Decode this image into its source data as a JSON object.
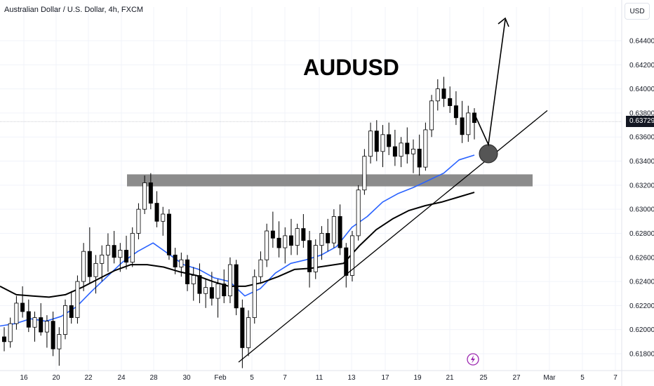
{
  "header": {
    "symbol": "Australian Dollar / U.S. Dollar, 4h, FXCM",
    "currency": "USD"
  },
  "annotations": {
    "title": "AUDUSD"
  },
  "price_axis": {
    "current_price": "0.63729"
  },
  "colors": {
    "bull_candle": "#ffffff",
    "bear_candle": "#000000",
    "ma_fast": "#2962ff",
    "ma_slow": "#000000",
    "resistance_zone": "#8c8c8c",
    "grid": "#f0f3fa",
    "zone_marker": "#555555"
  },
  "icons": {
    "event_marker": "lightning-icon"
  },
  "chart_data": {
    "type": "candlestick",
    "x_ticks": [
      "16",
      "20",
      "22",
      "24",
      "28",
      "30",
      "Feb",
      "5",
      "7",
      "11",
      "13",
      "17",
      "19",
      "21",
      "25",
      "27",
      "Mar",
      "5",
      "7"
    ],
    "y_ticks": [
      "0.64400",
      "0.64200",
      "0.64000",
      "0.63800",
      "0.63600",
      "0.63400",
      "0.63200",
      "0.63000",
      "0.62800",
      "0.62600",
      "0.62400",
      "0.62200",
      "0.62000",
      "0.61800"
    ],
    "ylim": [
      0.6166,
      0.6468
    ],
    "grid": true,
    "support_zone": [
      0.6319,
      0.6329
    ],
    "ma_fast_values": [
      0.6203,
      0.6205,
      0.6209,
      0.6207,
      0.6211,
      0.6219,
      0.6232,
      0.6244,
      0.6256,
      0.6265,
      0.6272,
      0.6263,
      0.6254,
      0.625,
      0.6243,
      0.624,
      0.6228,
      0.6234,
      0.6247,
      0.6255,
      0.6258,
      0.6262,
      0.6269,
      0.6285,
      0.6294,
      0.6306,
      0.6313,
      0.6318,
      0.6324,
      0.633,
      0.6341,
      0.6345
    ],
    "ma_slow_values": [
      0.6236,
      0.6229,
      0.6228,
      0.6227,
      0.6229,
      0.6235,
      0.6242,
      0.6249,
      0.6254,
      0.6254,
      0.6252,
      0.6248,
      0.6245,
      0.624,
      0.6236,
      0.6236,
      0.6239,
      0.6244,
      0.625,
      0.6251,
      0.6253,
      0.6255,
      0.627,
      0.6283,
      0.6292,
      0.6299,
      0.6303,
      0.6306,
      0.631,
      0.6314
    ],
    "trendline": [
      [
        0.6173
      ],
      [
        0.6382
      ]
    ],
    "candles": [
      {
        "o": 0.6194,
        "h": 0.6202,
        "l": 0.6182,
        "c": 0.619
      },
      {
        "o": 0.619,
        "h": 0.621,
        "l": 0.6185,
        "c": 0.6205
      },
      {
        "o": 0.6205,
        "h": 0.6228,
        "l": 0.62,
        "c": 0.6222
      },
      {
        "o": 0.6222,
        "h": 0.6236,
        "l": 0.621,
        "c": 0.6215
      },
      {
        "o": 0.6215,
        "h": 0.6225,
        "l": 0.6198,
        "c": 0.6202
      },
      {
        "o": 0.6202,
        "h": 0.6215,
        "l": 0.619,
        "c": 0.621
      },
      {
        "o": 0.621,
        "h": 0.6222,
        "l": 0.6195,
        "c": 0.6198
      },
      {
        "o": 0.6198,
        "h": 0.6212,
        "l": 0.6185,
        "c": 0.6207
      },
      {
        "o": 0.6207,
        "h": 0.6215,
        "l": 0.6178,
        "c": 0.6184
      },
      {
        "o": 0.6184,
        "h": 0.6202,
        "l": 0.617,
        "c": 0.6196
      },
      {
        "o": 0.6196,
        "h": 0.6225,
        "l": 0.6192,
        "c": 0.622
      },
      {
        "o": 0.622,
        "h": 0.6232,
        "l": 0.6205,
        "c": 0.621
      },
      {
        "o": 0.621,
        "h": 0.6245,
        "l": 0.6205,
        "c": 0.624
      },
      {
        "o": 0.624,
        "h": 0.6272,
        "l": 0.6232,
        "c": 0.6265
      },
      {
        "o": 0.6265,
        "h": 0.6285,
        "l": 0.6238,
        "c": 0.6244
      },
      {
        "o": 0.6244,
        "h": 0.6262,
        "l": 0.623,
        "c": 0.6255
      },
      {
        "o": 0.6255,
        "h": 0.627,
        "l": 0.624,
        "c": 0.6262
      },
      {
        "o": 0.6262,
        "h": 0.628,
        "l": 0.6248,
        "c": 0.627
      },
      {
        "o": 0.627,
        "h": 0.6282,
        "l": 0.6255,
        "c": 0.626
      },
      {
        "o": 0.626,
        "h": 0.6272,
        "l": 0.6248,
        "c": 0.6266
      },
      {
        "o": 0.6266,
        "h": 0.6278,
        "l": 0.625,
        "c": 0.6256
      },
      {
        "o": 0.6256,
        "h": 0.6285,
        "l": 0.6252,
        "c": 0.628
      },
      {
        "o": 0.628,
        "h": 0.6305,
        "l": 0.6275,
        "c": 0.63
      },
      {
        "o": 0.63,
        "h": 0.6328,
        "l": 0.6296,
        "c": 0.6322
      },
      {
        "o": 0.6322,
        "h": 0.633,
        "l": 0.63,
        "c": 0.6305
      },
      {
        "o": 0.6305,
        "h": 0.6315,
        "l": 0.6285,
        "c": 0.629
      },
      {
        "o": 0.629,
        "h": 0.6302,
        "l": 0.6278,
        "c": 0.6296
      },
      {
        "o": 0.6296,
        "h": 0.63,
        "l": 0.6258,
        "c": 0.6262
      },
      {
        "o": 0.6262,
        "h": 0.6268,
        "l": 0.6246,
        "c": 0.6252
      },
      {
        "o": 0.6252,
        "h": 0.6264,
        "l": 0.6244,
        "c": 0.6258
      },
      {
        "o": 0.6258,
        "h": 0.6262,
        "l": 0.6232,
        "c": 0.6238
      },
      {
        "o": 0.6238,
        "h": 0.6252,
        "l": 0.6224,
        "c": 0.6245
      },
      {
        "o": 0.6245,
        "h": 0.6255,
        "l": 0.6222,
        "c": 0.623
      },
      {
        "o": 0.623,
        "h": 0.6242,
        "l": 0.6218,
        "c": 0.6235
      },
      {
        "o": 0.6235,
        "h": 0.6248,
        "l": 0.622,
        "c": 0.6226
      },
      {
        "o": 0.6226,
        "h": 0.6242,
        "l": 0.621,
        "c": 0.6238
      },
      {
        "o": 0.6238,
        "h": 0.625,
        "l": 0.6222,
        "c": 0.6228
      },
      {
        "o": 0.6228,
        "h": 0.626,
        "l": 0.6222,
        "c": 0.6254
      },
      {
        "o": 0.6254,
        "h": 0.6258,
        "l": 0.6212,
        "c": 0.6218
      },
      {
        "o": 0.6218,
        "h": 0.6225,
        "l": 0.6168,
        "c": 0.6185
      },
      {
        "o": 0.6185,
        "h": 0.6216,
        "l": 0.6178,
        "c": 0.621
      },
      {
        "o": 0.621,
        "h": 0.625,
        "l": 0.6205,
        "c": 0.6244
      },
      {
        "o": 0.6244,
        "h": 0.6265,
        "l": 0.6238,
        "c": 0.6258
      },
      {
        "o": 0.6258,
        "h": 0.6288,
        "l": 0.6252,
        "c": 0.6282
      },
      {
        "o": 0.6282,
        "h": 0.6298,
        "l": 0.6268,
        "c": 0.6276
      },
      {
        "o": 0.6276,
        "h": 0.629,
        "l": 0.626,
        "c": 0.6268
      },
      {
        "o": 0.6268,
        "h": 0.6285,
        "l": 0.6255,
        "c": 0.6278
      },
      {
        "o": 0.6278,
        "h": 0.6292,
        "l": 0.6262,
        "c": 0.627
      },
      {
        "o": 0.627,
        "h": 0.6288,
        "l": 0.6262,
        "c": 0.6284
      },
      {
        "o": 0.6284,
        "h": 0.6296,
        "l": 0.6268,
        "c": 0.6274
      },
      {
        "o": 0.6274,
        "h": 0.6282,
        "l": 0.6235,
        "c": 0.6248
      },
      {
        "o": 0.6248,
        "h": 0.6275,
        "l": 0.6242,
        "c": 0.627
      },
      {
        "o": 0.627,
        "h": 0.6286,
        "l": 0.6258,
        "c": 0.628
      },
      {
        "o": 0.628,
        "h": 0.6292,
        "l": 0.6265,
        "c": 0.6272
      },
      {
        "o": 0.6272,
        "h": 0.63,
        "l": 0.6268,
        "c": 0.6294
      },
      {
        "o": 0.6294,
        "h": 0.6304,
        "l": 0.6262,
        "c": 0.6268
      },
      {
        "o": 0.6268,
        "h": 0.6272,
        "l": 0.6235,
        "c": 0.6245
      },
      {
        "o": 0.6245,
        "h": 0.6282,
        "l": 0.624,
        "c": 0.6278
      },
      {
        "o": 0.6278,
        "h": 0.632,
        "l": 0.6274,
        "c": 0.6316
      },
      {
        "o": 0.6316,
        "h": 0.635,
        "l": 0.6312,
        "c": 0.6344
      },
      {
        "o": 0.6344,
        "h": 0.6372,
        "l": 0.6338,
        "c": 0.6365
      },
      {
        "o": 0.6365,
        "h": 0.6374,
        "l": 0.634,
        "c": 0.6348
      },
      {
        "o": 0.6348,
        "h": 0.637,
        "l": 0.6335,
        "c": 0.6362
      },
      {
        "o": 0.6362,
        "h": 0.6372,
        "l": 0.6345,
        "c": 0.6352
      },
      {
        "o": 0.6352,
        "h": 0.6366,
        "l": 0.6336,
        "c": 0.6344
      },
      {
        "o": 0.6344,
        "h": 0.636,
        "l": 0.6335,
        "c": 0.6355
      },
      {
        "o": 0.6355,
        "h": 0.6368,
        "l": 0.6338,
        "c": 0.6346
      },
      {
        "o": 0.6346,
        "h": 0.6358,
        "l": 0.633,
        "c": 0.635
      },
      {
        "o": 0.635,
        "h": 0.6362,
        "l": 0.6328,
        "c": 0.6335
      },
      {
        "o": 0.6335,
        "h": 0.6372,
        "l": 0.6332,
        "c": 0.6366
      },
      {
        "o": 0.6366,
        "h": 0.6395,
        "l": 0.636,
        "c": 0.639
      },
      {
        "o": 0.639,
        "h": 0.6408,
        "l": 0.6382,
        "c": 0.64
      },
      {
        "o": 0.64,
        "h": 0.641,
        "l": 0.6385,
        "c": 0.6392
      },
      {
        "o": 0.6392,
        "h": 0.6402,
        "l": 0.638,
        "c": 0.6386
      },
      {
        "o": 0.6386,
        "h": 0.6398,
        "l": 0.637,
        "c": 0.6376
      },
      {
        "o": 0.6376,
        "h": 0.639,
        "l": 0.6355,
        "c": 0.6362
      },
      {
        "o": 0.6362,
        "h": 0.6386,
        "l": 0.6356,
        "c": 0.638
      },
      {
        "o": 0.638,
        "h": 0.6384,
        "l": 0.6358,
        "c": 0.6372
      }
    ]
  }
}
